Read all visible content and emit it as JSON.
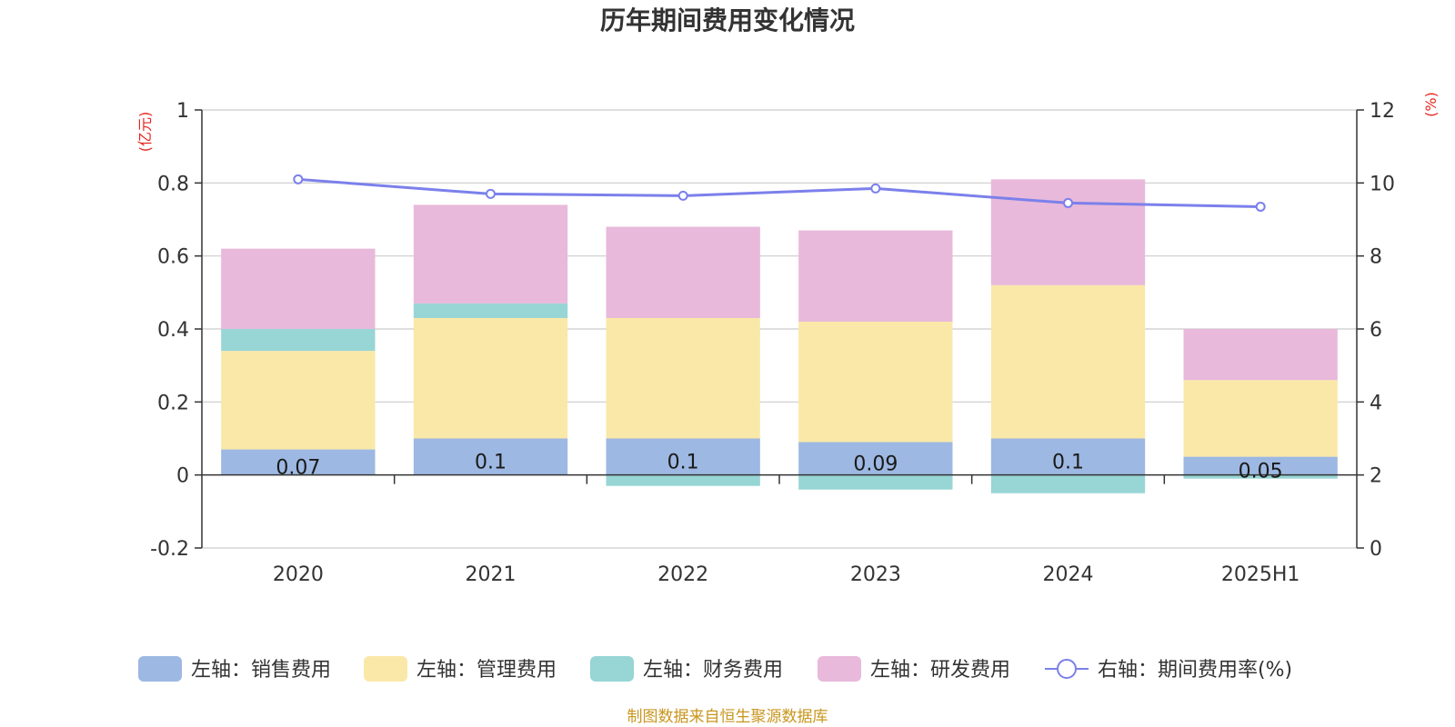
{
  "chart_data": {
    "type": "bar",
    "title": "历年期间费用变化情况",
    "categories": [
      "2020",
      "2021",
      "2022",
      "2023",
      "2024",
      "2025H1"
    ],
    "series": [
      {
        "name": "左轴：销售费用",
        "axis": "left",
        "color": "#9db8e2",
        "values": [
          0.07,
          0.1,
          0.1,
          0.09,
          0.1,
          0.05
        ],
        "data_labels": [
          "0.07",
          "0.1",
          "0.1",
          "0.09",
          "0.1",
          "0.05"
        ]
      },
      {
        "name": "左轴：管理费用",
        "axis": "left",
        "color": "#f9e8a8",
        "values": [
          0.27,
          0.33,
          0.33,
          0.33,
          0.42,
          0.21
        ]
      },
      {
        "name": "左轴：财务费用",
        "axis": "left",
        "color": "#98d5d5",
        "values": [
          0.06,
          0.04,
          -0.03,
          -0.04,
          -0.05,
          -0.01
        ]
      },
      {
        "name": "左轴：研发费用",
        "axis": "left",
        "color": "#e8b9da",
        "values": [
          0.22,
          0.27,
          0.25,
          0.25,
          0.29,
          0.14
        ]
      },
      {
        "name": "右轴：期间费用率(%)",
        "axis": "right",
        "type": "line",
        "color": "#7b80eb",
        "values": [
          10.1,
          9.7,
          9.65,
          9.85,
          9.45,
          9.35
        ]
      }
    ],
    "left_axis": {
      "unit": "(亿元)",
      "min": -0.2,
      "max": 1,
      "ticks": [
        -0.2,
        0,
        0.2,
        0.4,
        0.6,
        0.8,
        1
      ],
      "tick_labels": [
        "-0.2",
        "0",
        "0.2",
        "0.4",
        "0.6",
        "0.8",
        "1"
      ]
    },
    "right_axis": {
      "unit": "(%)",
      "min": 0,
      "max": 12,
      "ticks": [
        0,
        2,
        4,
        6,
        8,
        10,
        12
      ],
      "tick_labels": [
        "0",
        "2",
        "4",
        "6",
        "8",
        "10",
        "12"
      ]
    },
    "grid": true,
    "legend_position": "bottom"
  },
  "source_note": "制图数据来自恒生聚源数据库"
}
